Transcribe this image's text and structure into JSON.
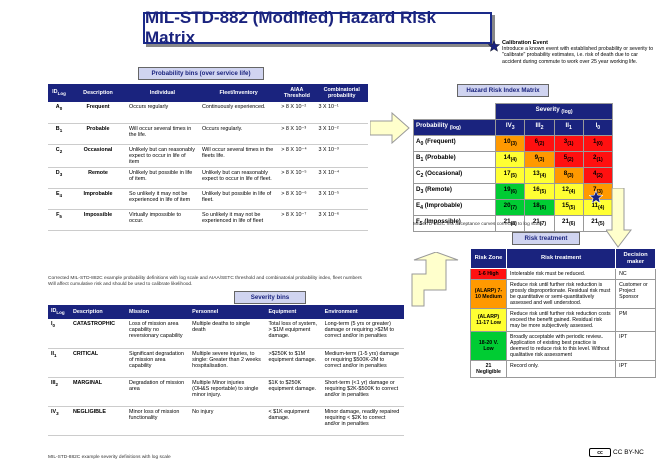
{
  "title": "MIL-STD-882 (Modified) Hazard Risk Matrix",
  "calibration": {
    "title": "Calibration Event",
    "text": "Introduce a known event with established probability or severity to \"calibrate\" probability estimates, i.e. risk of death due to car accident during commute to work over 25 year working life."
  },
  "probability": {
    "bins_title": "Probability bins (over service life)",
    "headers": [
      "ID",
      "Description",
      "Individual",
      "Fleet/Inventory",
      "AIAA Threshold",
      "Combinatorial probability"
    ],
    "id_sub": "Log",
    "rows": [
      {
        "id": "A",
        "sub": "0",
        "desc": "Frequent",
        "individual": "Occurs regularly",
        "fleet": "Continuously experienced.",
        "aiaa": "> 8 X 10⁻²",
        "comb": "3 X 10⁻¹"
      },
      {
        "id": "B",
        "sub": "1",
        "desc": "Probable",
        "individual": "Will occur several times in the life.",
        "fleet": "Occurs regularly.",
        "aiaa": "> 8 X 10⁻³",
        "comb": "3 X 10⁻²"
      },
      {
        "id": "C",
        "sub": "2",
        "desc": "Occasional",
        "individual": "Unlikely but can reasonably expect to occur in life of item",
        "fleet": "Will occur several times in the fleets life.",
        "aiaa": "> 8 X 10⁻⁴",
        "comb": "3 X 10⁻³"
      },
      {
        "id": "D",
        "sub": "3",
        "desc": "Remote",
        "individual": "Unlikely but possible in life of item.",
        "fleet": "Unlikely but can reasonably expect to occur in life of fleet.",
        "aiaa": "> 8 X 10⁻⁵",
        "comb": "3 X 10⁻⁴"
      },
      {
        "id": "E",
        "sub": "4",
        "desc": "Improbable",
        "individual": "So unlikely it may not be experienced in life of item",
        "fleet": "Unlikely but possible in life of fleet.",
        "aiaa": "> 8 X 10⁻⁶",
        "comb": "3 X 10⁻⁵"
      },
      {
        "id": "F",
        "sub": "5",
        "desc": "Impossible",
        "individual": "Virtually impossible to occur.",
        "fleet": "So unlikely it may not be experienced in life of fleet",
        "aiaa": "> 8 X 10⁻⁷",
        "comb": "3 X 10⁻⁶"
      }
    ],
    "footnote": "Corrected MIL-STD-882C example probability definitions with log scale and AIAA/SETC threshold and combinatorial probability index, fleet numbers Will affect cumulative risk and should be used to calibrate likelihood."
  },
  "severity": {
    "bins_title": "Severity bins",
    "headers": [
      "ID",
      "Description",
      "Mission",
      "Personnel",
      "Equipment",
      "Environment"
    ],
    "id_sub": "Log",
    "rows": [
      {
        "id": "I",
        "sub": "0",
        "desc": "CATASTROPHIC",
        "mission": "Loss of mission area capability no reversionary capability",
        "personnel": "Multiple deaths to single death",
        "equipment": "Total loss of system, > $1M equipment damage.",
        "environment": "Long-term (5 yrs or greater) damage or requiring >$2M to correct and/or in penalties"
      },
      {
        "id": "II",
        "sub": "1",
        "desc": "CRITICAL",
        "mission": "Significant degradation of mission area capability",
        "personnel": "Multiple severe injuries, to single: Greater than 2 weeks hospitalisation.",
        "equipment": ">$250K to $1M equipment damage.",
        "environment": "Medium-term (1-5 yrs) damage or requiring $500K-2M to correct and/or in penalties"
      },
      {
        "id": "III",
        "sub": "2",
        "desc": "MARGINAL",
        "mission": "Degradation of mission area",
        "personnel": "Multiple Minor injuries (OH&S reportable) to single minor injury.",
        "equipment": "$1K to $250K equipment damage.",
        "environment": "Short-term (<1 yr) damage or requiring $2K-$500K to correct and/or in penalties"
      },
      {
        "id": "IV",
        "sub": "3",
        "desc": "NEGLIGIBLE",
        "mission": "Minor loss of mission functionality",
        "personnel": "No injury",
        "equipment": "< $1K equipment damage.",
        "environment": "Minor damage, readily repaired requiring < $2K to correct and/or in penalties"
      }
    ],
    "footnote": "MIL-STD-882C example severity definitions with log scale"
  },
  "matrix": {
    "title": "Hazard Risk Index Matrix",
    "severity_label": "Severity",
    "severity_sub": "(log)",
    "probability_label": "Probability",
    "probability_sub": "(log)",
    "columns": [
      "IV",
      "III",
      "II",
      "I"
    ],
    "col_subs": [
      "3",
      "2",
      "1",
      "0"
    ],
    "rows": [
      {
        "label": "A",
        "sub": "0",
        "name": "(Frequent)",
        "cells": [
          {
            "v": "10",
            "s": "(3)",
            "c": "orange"
          },
          {
            "v": "6",
            "s": "(2)",
            "c": "red"
          },
          {
            "v": "3",
            "s": "(1)",
            "c": "red"
          },
          {
            "v": "1",
            "s": "(0)",
            "c": "red"
          }
        ]
      },
      {
        "label": "B",
        "sub": "1",
        "name": "(Probable)",
        "cells": [
          {
            "v": "14",
            "s": "(4)",
            "c": "yellow"
          },
          {
            "v": "9",
            "s": "(3)",
            "c": "orange"
          },
          {
            "v": "5",
            "s": "(2)",
            "c": "red"
          },
          {
            "v": "2",
            "s": "(1)",
            "c": "red"
          }
        ]
      },
      {
        "label": "C",
        "sub": "2",
        "name": "(Occasional)",
        "cells": [
          {
            "v": "17",
            "s": "(5)",
            "c": "yellow"
          },
          {
            "v": "13",
            "s": "(4)",
            "c": "yellow"
          },
          {
            "v": "8",
            "s": "(3)",
            "c": "orange"
          },
          {
            "v": "4",
            "s": "(2)",
            "c": "red"
          }
        ]
      },
      {
        "label": "D",
        "sub": "3",
        "name": "(Remote)",
        "cells": [
          {
            "v": "19",
            "s": "(6)",
            "c": "green"
          },
          {
            "v": "16",
            "s": "(5)",
            "c": "yellow"
          },
          {
            "v": "12",
            "s": "(4)",
            "c": "yellow"
          },
          {
            "v": "7",
            "s": "(3)",
            "c": "orange"
          }
        ]
      },
      {
        "label": "E",
        "sub": "4",
        "name": "(Improbable)",
        "cells": [
          {
            "v": "20",
            "s": "(7)",
            "c": "green"
          },
          {
            "v": "18",
            "s": "(6)",
            "c": "green"
          },
          {
            "v": "15",
            "s": "(5)",
            "c": "yellow"
          },
          {
            "v": "11",
            "s": "(4)",
            "c": "yellow"
          }
        ]
      },
      {
        "label": "F",
        "sub": "5",
        "name": "(Impossible)",
        "cells": [
          {
            "v": "21",
            "s": "(8)",
            "c": "white"
          },
          {
            "v": "21",
            "s": "(7)",
            "c": "white"
          },
          {
            "v": "21",
            "s": "(6)",
            "c": "white"
          },
          {
            "v": "21",
            "s": "(5)",
            "c": "white"
          }
        ]
      }
    ],
    "footnote": "MIL-STD-882C risk acceptance curves corrected to log scale."
  },
  "treatment": {
    "title": "Risk treatment",
    "headers": [
      "Risk Zone",
      "Risk treatment",
      "Decision maker"
    ],
    "rows": [
      {
        "zone": "1-6 High",
        "color": "red",
        "text": "Intolerable risk must be reduced.",
        "decision": "NC"
      },
      {
        "zone": "(ALARP) 7-10 Medium",
        "color": "orange",
        "text": "Reduce risk until further risk reduction is grossly disproportionate. Residual risk must be quantitative or semi-quantitatively assessed and well understood.",
        "decision": "Customer or Project Sponsor"
      },
      {
        "zone": "(ALARP) 11-17 Low",
        "color": "yellow",
        "text": "Reduce risk until further risk reduction costs exceed the benefit gained. Residual risk may be more subjectively assessed.",
        "decision": "PM"
      },
      {
        "zone": "18-20 V. Low",
        "color": "green",
        "text": "Broadly acceptable with periodic review.. Application of existing best practice is deemed to reduce risk to this level. Without qualitative risk assessment",
        "decision": "IPT"
      },
      {
        "zone": "21 Negligible",
        "color": "white",
        "text": "Record only.",
        "decision": "IPT"
      }
    ]
  },
  "license": "CC BY-NC",
  "colors": {
    "navy": "#1a237e",
    "red": "#ff1010",
    "orange": "#ff9900",
    "yellow": "#ffff33",
    "green": "#00cc33"
  }
}
